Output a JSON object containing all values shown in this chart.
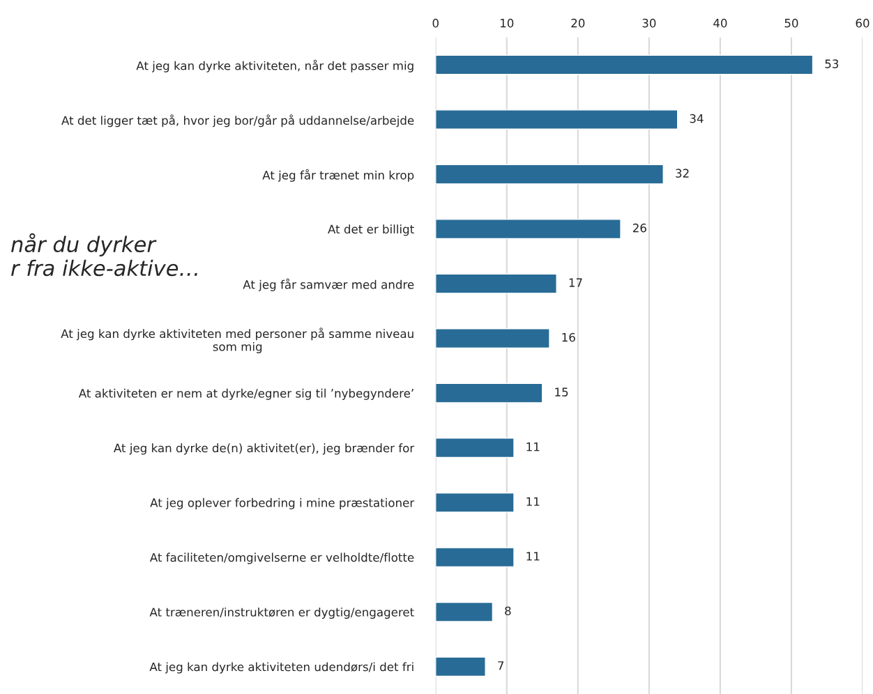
{
  "chart_data": {
    "type": "bar",
    "orientation": "horizontal",
    "categories": [
      "At jeg kan dyrke aktiviteten, når det passer mig",
      "At det ligger tæt på, hvor jeg bor/går på uddannelse/arbejde",
      "At jeg får trænet min krop",
      "At det er billigt",
      "At jeg får samvær med andre",
      "At jeg kan dyrke aktiviteten med personer på samme niveau\nsom mig",
      "At aktiviteten er nem at dyrke/egner sig til ’nybegyndere’",
      "At jeg kan dyrke de(n) aktivitet(er), jeg brænder for",
      "At jeg oplever forbedring i mine præstationer",
      "At faciliteten/omgivelserne er velholdte/flotte",
      "At træneren/instruktøren er dygtig/engageret",
      "At jeg kan dyrke aktiviteten udendørs/i det fri"
    ],
    "values": [
      53,
      34,
      32,
      26,
      17,
      16,
      15,
      11,
      11,
      11,
      8,
      7
    ],
    "color": "#286b96",
    "xlim": [
      0,
      60
    ],
    "xticks": [
      0,
      10,
      20,
      30,
      40,
      50,
      60
    ],
    "grid": "x",
    "data_labels": true,
    "annotations": [
      "når du dyrker\nr fra ikke-aktive…"
    ]
  }
}
